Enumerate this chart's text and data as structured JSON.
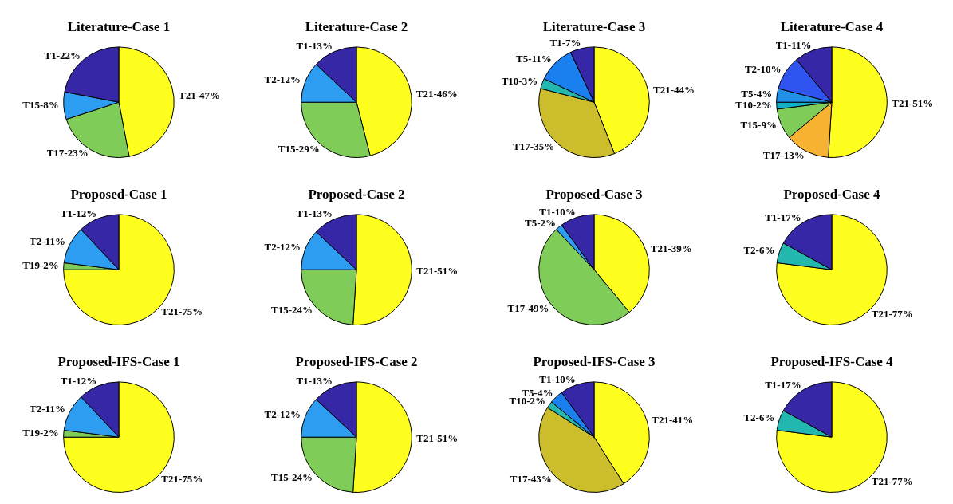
{
  "chart_data": [
    {
      "type": "pie",
      "title": "Literature-Case 1",
      "categories": [
        "T21-47%",
        "T17-23%",
        "T15-8%",
        "T1-22%"
      ],
      "values": [
        47,
        23,
        8,
        22
      ],
      "colors": [
        "#ffff1f",
        "#80cc58",
        "#2c9df0",
        "#3527a6"
      ]
    },
    {
      "type": "pie",
      "title": "Literature-Case 2",
      "categories": [
        "T21-46%",
        "T15-29%",
        "T2-12%",
        "T1-13%"
      ],
      "values": [
        46,
        29,
        12,
        13
      ],
      "colors": [
        "#ffff1f",
        "#80cc58",
        "#2c9df0",
        "#3527a6"
      ]
    },
    {
      "type": "pie",
      "title": "Literature-Case 3",
      "categories": [
        "T21-44%",
        "T17-35%",
        "T10-3%",
        "T5-11%",
        "T1-7%"
      ],
      "values": [
        44,
        35,
        3,
        11,
        7
      ],
      "colors": [
        "#ffff1f",
        "#cbbd2c",
        "#22b8b0",
        "#1a80f0",
        "#3527a6"
      ]
    },
    {
      "type": "pie",
      "title": "Literature-Case 4",
      "categories": [
        "T21-51%",
        "T17-13%",
        "T15-9%",
        "T10-2%",
        "T5-4%",
        "T2-10%",
        "T1-11%"
      ],
      "values": [
        51,
        13,
        9,
        2,
        4,
        10,
        11
      ],
      "colors": [
        "#ffff1f",
        "#f8b232",
        "#80cc58",
        "#12b0c8",
        "#2090e8",
        "#3054f0",
        "#3527a6"
      ]
    },
    {
      "type": "pie",
      "title": "Proposed-Case 1",
      "categories": [
        "T21-75%",
        "T19-2%",
        "T2-11%",
        "T1-12%"
      ],
      "values": [
        75,
        2,
        11,
        12
      ],
      "colors": [
        "#ffff1f",
        "#80cc58",
        "#2c9df0",
        "#3527a6"
      ]
    },
    {
      "type": "pie",
      "title": "Proposed-Case 2",
      "categories": [
        "T21-51%",
        "T15-24%",
        "T2-12%",
        "T1-13%"
      ],
      "values": [
        51,
        24,
        12,
        13
      ],
      "colors": [
        "#ffff1f",
        "#80cc58",
        "#2c9df0",
        "#3527a6"
      ]
    },
    {
      "type": "pie",
      "title": "Proposed-Case 3",
      "categories": [
        "T21-39%",
        "T17-49%",
        "T5-2%",
        "T1-10%"
      ],
      "values": [
        39,
        49,
        2,
        10
      ],
      "colors": [
        "#ffff1f",
        "#80cc58",
        "#2c9df0",
        "#3527a6"
      ]
    },
    {
      "type": "pie",
      "title": "Proposed-Case 4",
      "categories": [
        "T21-77%",
        "T2-6%",
        "T1-17%"
      ],
      "values": [
        77,
        6,
        17
      ],
      "colors": [
        "#ffff1f",
        "#22b8b0",
        "#3527a6"
      ]
    },
    {
      "type": "pie",
      "title": "Proposed-IFS-Case 1",
      "categories": [
        "T21-75%",
        "T19-2%",
        "T2-11%",
        "T1-12%"
      ],
      "values": [
        75,
        2,
        11,
        12
      ],
      "colors": [
        "#ffff1f",
        "#80cc58",
        "#2c9df0",
        "#3527a6"
      ]
    },
    {
      "type": "pie",
      "title": "Proposed-IFS-Case 2",
      "categories": [
        "T21-51%",
        "T15-24%",
        "T2-12%",
        "T1-13%"
      ],
      "values": [
        51,
        24,
        12,
        13
      ],
      "colors": [
        "#ffff1f",
        "#80cc58",
        "#2c9df0",
        "#3527a6"
      ]
    },
    {
      "type": "pie",
      "title": "Proposed-IFS-Case 3",
      "categories": [
        "T21-41%",
        "T17-43%",
        "T10-2%",
        "T5-4%",
        "T1-10%"
      ],
      "values": [
        41,
        43,
        2,
        4,
        10
      ],
      "colors": [
        "#ffff1f",
        "#cbbd2c",
        "#22b8b0",
        "#1a80f0",
        "#3527a6"
      ]
    },
    {
      "type": "pie",
      "title": "Proposed-IFS-Case 4",
      "categories": [
        "T21-77%",
        "T2-6%",
        "T1-17%"
      ],
      "values": [
        77,
        6,
        17
      ],
      "colors": [
        "#ffff1f",
        "#22b8b0",
        "#3527a6"
      ]
    }
  ]
}
